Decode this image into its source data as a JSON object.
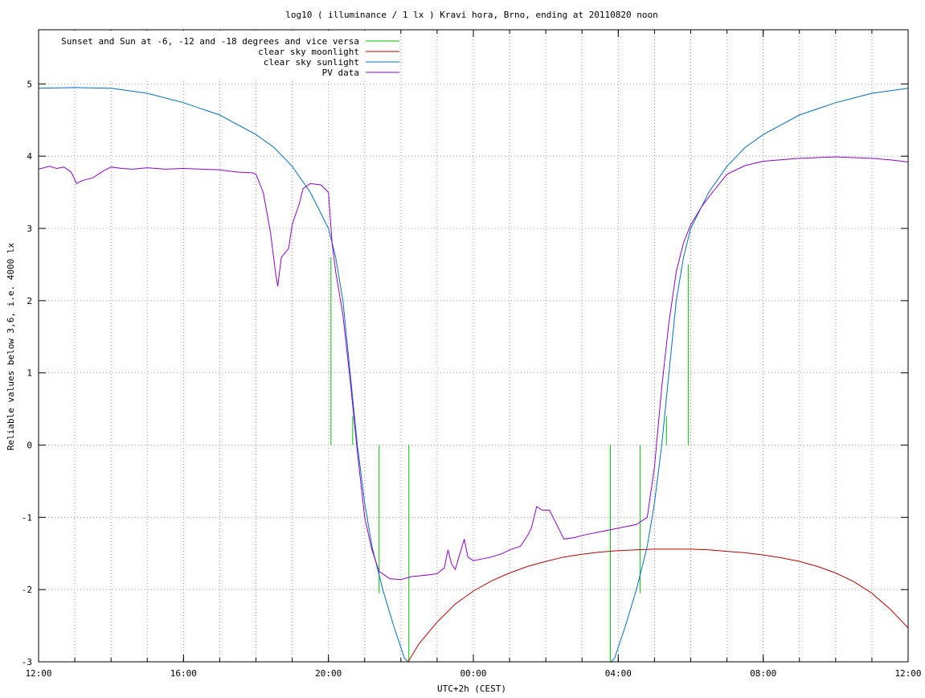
{
  "chart_data": {
    "type": "line",
    "title": "log10 ( illuminance / 1 lx ) Kravi hora, Brno, ending at 20110820 noon",
    "xlabel": "UTC+2h (CEST)",
    "ylabel": "Reliable values below 3,6, i.e. 4000 lx",
    "x_unit": "hours",
    "xlim": [
      12,
      36
    ],
    "ylim": [
      -3,
      5.75
    ],
    "x_ticks": [
      {
        "x": 12,
        "label": "12:00"
      },
      {
        "x": 16,
        "label": "16:00"
      },
      {
        "x": 20,
        "label": "20:00"
      },
      {
        "x": 24,
        "label": "00:00"
      },
      {
        "x": 28,
        "label": "04:00"
      },
      {
        "x": 32,
        "label": "08:00"
      },
      {
        "x": 36,
        "label": "12:00"
      }
    ],
    "x_grid_step": 1,
    "y_ticks": [
      {
        "y": 5,
        "label": "5"
      },
      {
        "y": 4,
        "label": "4"
      },
      {
        "y": 3,
        "label": "3"
      },
      {
        "y": 2,
        "label": "2"
      },
      {
        "y": 1,
        "label": "1"
      },
      {
        "y": 0,
        "label": "0"
      },
      {
        "y": -1,
        "label": "-1"
      },
      {
        "y": -2,
        "label": "-2"
      },
      {
        "y": -3,
        "label": "-3"
      }
    ],
    "grid": true,
    "legend_position": "top-left",
    "series": [
      {
        "name": "Sunset and Sun at -6, -12 and -18 degrees and vice versa",
        "color": "#00c000",
        "kind": "vlines",
        "lines": [
          {
            "x": 20.07,
            "y0": 0,
            "y1": 2.6
          },
          {
            "x": 20.67,
            "y0": 0,
            "y1": 0.4
          },
          {
            "x": 21.4,
            "y0": -2.05,
            "y1": 0
          },
          {
            "x": 22.22,
            "y0": -3,
            "y1": 0
          },
          {
            "x": 27.78,
            "y0": -3,
            "y1": 0
          },
          {
            "x": 28.6,
            "y0": -2.05,
            "y1": 0
          },
          {
            "x": 29.33,
            "y0": 0,
            "y1": 0.4
          },
          {
            "x": 29.93,
            "y0": 0,
            "y1": 2.5
          }
        ]
      },
      {
        "name": "clear sky moonlight",
        "color": "#c00000",
        "points": [
          [
            22.2,
            -3.0
          ],
          [
            22.5,
            -2.75
          ],
          [
            23.0,
            -2.45
          ],
          [
            23.5,
            -2.2
          ],
          [
            24.0,
            -2.02
          ],
          [
            24.5,
            -1.88
          ],
          [
            25.0,
            -1.77
          ],
          [
            25.5,
            -1.68
          ],
          [
            26.0,
            -1.61
          ],
          [
            26.5,
            -1.55
          ],
          [
            27.0,
            -1.51
          ],
          [
            27.5,
            -1.48
          ],
          [
            28.0,
            -1.46
          ],
          [
            28.5,
            -1.45
          ],
          [
            29.0,
            -1.44
          ],
          [
            29.5,
            -1.44
          ],
          [
            30.0,
            -1.44
          ],
          [
            30.5,
            -1.45
          ],
          [
            31.0,
            -1.47
          ],
          [
            31.5,
            -1.49
          ],
          [
            32.0,
            -1.52
          ],
          [
            32.5,
            -1.56
          ],
          [
            33.0,
            -1.61
          ],
          [
            33.5,
            -1.68
          ],
          [
            34.0,
            -1.77
          ],
          [
            34.5,
            -1.89
          ],
          [
            35.0,
            -2.05
          ],
          [
            35.5,
            -2.27
          ],
          [
            36.0,
            -2.53
          ]
        ]
      },
      {
        "name": "clear sky sunlight",
        "color": "#0070c0",
        "points": [
          [
            12.0,
            4.94
          ],
          [
            13.0,
            4.95
          ],
          [
            14.0,
            4.94
          ],
          [
            15.0,
            4.87
          ],
          [
            16.0,
            4.74
          ],
          [
            17.0,
            4.57
          ],
          [
            18.0,
            4.3
          ],
          [
            18.5,
            4.12
          ],
          [
            19.0,
            3.86
          ],
          [
            19.5,
            3.5
          ],
          [
            20.0,
            3.0
          ],
          [
            20.2,
            2.6
          ],
          [
            20.4,
            2.0
          ],
          [
            20.6,
            1.0
          ],
          [
            20.8,
            0.0
          ],
          [
            21.0,
            -0.8
          ],
          [
            21.2,
            -1.4
          ],
          [
            21.5,
            -2.0
          ],
          [
            21.8,
            -2.5
          ],
          [
            22.1,
            -2.95
          ],
          [
            22.2,
            -3.0
          ]
        ]
      },
      {
        "name": "clear sky sunlight (morning)",
        "color": "#0070c0",
        "points": [
          [
            27.8,
            -3.0
          ],
          [
            27.9,
            -2.95
          ],
          [
            28.2,
            -2.5
          ],
          [
            28.5,
            -2.0
          ],
          [
            28.8,
            -1.4
          ],
          [
            29.0,
            -0.8
          ],
          [
            29.2,
            0.0
          ],
          [
            29.4,
            1.0
          ],
          [
            29.6,
            2.0
          ],
          [
            29.8,
            2.6
          ],
          [
            30.0,
            3.0
          ],
          [
            30.5,
            3.5
          ],
          [
            31.0,
            3.86
          ],
          [
            31.5,
            4.12
          ],
          [
            32.0,
            4.3
          ],
          [
            33.0,
            4.57
          ],
          [
            34.0,
            4.74
          ],
          [
            35.0,
            4.87
          ],
          [
            36.0,
            4.94
          ]
        ]
      },
      {
        "name": "PV data",
        "color": "#9000d0",
        "points": [
          [
            12.0,
            3.82
          ],
          [
            12.3,
            3.86
          ],
          [
            12.5,
            3.83
          ],
          [
            12.7,
            3.85
          ],
          [
            12.9,
            3.78
          ],
          [
            13.05,
            3.62
          ],
          [
            13.2,
            3.66
          ],
          [
            13.5,
            3.7
          ],
          [
            13.8,
            3.8
          ],
          [
            14.0,
            3.85
          ],
          [
            14.3,
            3.83
          ],
          [
            14.6,
            3.82
          ],
          [
            15.0,
            3.84
          ],
          [
            15.5,
            3.82
          ],
          [
            16.0,
            3.83
          ],
          [
            16.5,
            3.82
          ],
          [
            17.0,
            3.81
          ],
          [
            17.5,
            3.78
          ],
          [
            17.9,
            3.77
          ],
          [
            18.0,
            3.75
          ],
          [
            18.2,
            3.5
          ],
          [
            18.4,
            2.95
          ],
          [
            18.55,
            2.35
          ],
          [
            18.6,
            2.2
          ],
          [
            18.7,
            2.6
          ],
          [
            18.9,
            2.72
          ],
          [
            19.0,
            3.05
          ],
          [
            19.2,
            3.35
          ],
          [
            19.3,
            3.55
          ],
          [
            19.5,
            3.62
          ],
          [
            19.8,
            3.6
          ],
          [
            20.0,
            3.5
          ],
          [
            20.1,
            2.8
          ],
          [
            20.2,
            2.4
          ],
          [
            20.4,
            1.8
          ],
          [
            20.6,
            0.9
          ],
          [
            20.8,
            -0.1
          ],
          [
            21.0,
            -1.0
          ],
          [
            21.2,
            -1.45
          ],
          [
            21.4,
            -1.75
          ],
          [
            21.7,
            -1.85
          ],
          [
            22.0,
            -1.86
          ],
          [
            22.3,
            -1.82
          ],
          [
            22.7,
            -1.8
          ],
          [
            23.0,
            -1.78
          ],
          [
            23.2,
            -1.7
          ],
          [
            23.3,
            -1.45
          ],
          [
            23.4,
            -1.65
          ],
          [
            23.5,
            -1.72
          ],
          [
            23.6,
            -1.55
          ],
          [
            23.75,
            -1.3
          ],
          [
            23.85,
            -1.55
          ],
          [
            24.0,
            -1.6
          ],
          [
            24.5,
            -1.55
          ],
          [
            24.8,
            -1.5
          ],
          [
            25.0,
            -1.45
          ],
          [
            25.3,
            -1.4
          ],
          [
            25.5,
            -1.25
          ],
          [
            25.6,
            -1.15
          ],
          [
            25.75,
            -0.85
          ],
          [
            25.9,
            -0.9
          ],
          [
            26.1,
            -0.9
          ],
          [
            26.4,
            -1.2
          ],
          [
            26.5,
            -1.3
          ],
          [
            26.8,
            -1.28
          ],
          [
            27.0,
            -1.25
          ],
          [
            27.5,
            -1.2
          ],
          [
            28.0,
            -1.15
          ],
          [
            28.5,
            -1.1
          ],
          [
            28.8,
            -1.0
          ],
          [
            29.0,
            -0.3
          ],
          [
            29.2,
            0.8
          ],
          [
            29.4,
            1.7
          ],
          [
            29.6,
            2.4
          ],
          [
            29.8,
            2.8
          ],
          [
            30.0,
            3.05
          ],
          [
            30.3,
            3.3
          ],
          [
            30.6,
            3.5
          ],
          [
            31.0,
            3.75
          ],
          [
            31.5,
            3.87
          ],
          [
            32.0,
            3.93
          ],
          [
            33.0,
            3.97
          ],
          [
            34.0,
            3.99
          ],
          [
            35.0,
            3.97
          ],
          [
            35.5,
            3.95
          ],
          [
            36.0,
            3.92
          ]
        ]
      }
    ],
    "legend": [
      {
        "label": "Sunset and Sun at -6, -12 and -18 degrees and vice versa",
        "color": "#00c000"
      },
      {
        "label": "clear sky moonlight",
        "color": "#c00000"
      },
      {
        "label": "clear sky sunlight",
        "color": "#0070c0"
      },
      {
        "label": "PV data",
        "color": "#9000d0"
      }
    ]
  }
}
